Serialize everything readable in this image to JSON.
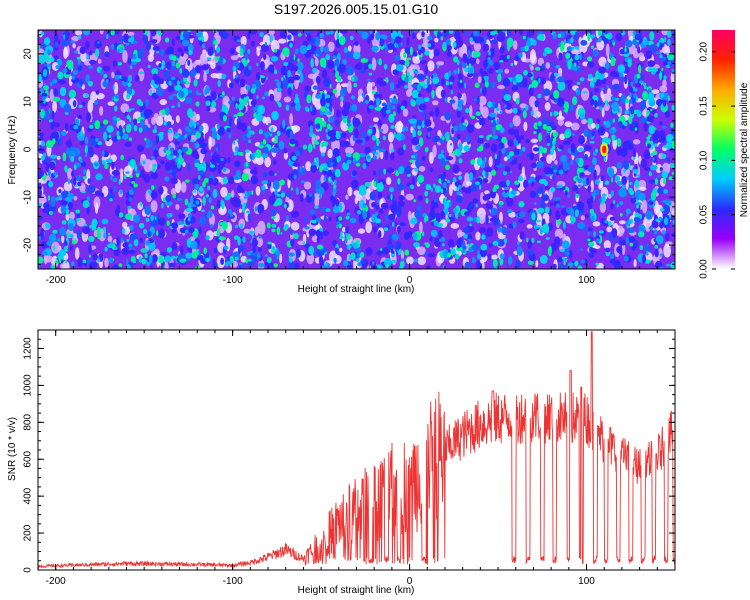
{
  "title": "S197.2026.005.15.01.G10",
  "chart_data": [
    {
      "type": "heatmap",
      "xlabel": "Height of straight line (km)",
      "ylabel": "Frequency (Hz)",
      "xlim": [
        -210,
        150
      ],
      "ylim": [
        -25,
        25
      ],
      "xticks": [
        "-200",
        "-100",
        "0",
        "100"
      ],
      "yticks": [
        "-20",
        "-10",
        "0",
        "10",
        "20"
      ],
      "colorbar": {
        "label": "Normalized spectral amplitude",
        "range": [
          0,
          0.22
        ],
        "ticks": [
          "0.00",
          "0.05",
          "0.10",
          "0.15",
          "0.20"
        ],
        "colors": [
          "#ffffff",
          "#9900ff",
          "#2a2aff",
          "#00ccff",
          "#00ff66",
          "#ccff00",
          "#ffaa00",
          "#ff2200",
          "#ff0066"
        ]
      },
      "hotspots": [
        {
          "x": 110,
          "y": 0,
          "value": 0.2
        },
        {
          "x": 70,
          "y": -14,
          "value": 0.09
        },
        {
          "x": 145,
          "y": -15,
          "value": 0.08
        },
        {
          "x": -206,
          "y": 16,
          "value": 0.08
        }
      ]
    },
    {
      "type": "line",
      "xlabel": "Height of straight line (km)",
      "ylabel": "SNR (10 * v/v)",
      "xlim": [
        -210,
        150
      ],
      "ylim": [
        0,
        1300
      ],
      "xticks": [
        "-200",
        "-100",
        "0",
        "100"
      ],
      "yticks": [
        "0",
        "200",
        "400",
        "600",
        "800",
        "1000",
        "1200"
      ],
      "color": "#ee3333",
      "baseline": {
        "x": [
          -210,
          -160,
          -120,
          -100,
          -90,
          -80,
          -70,
          -60,
          -50,
          -40,
          -30,
          -20,
          -10,
          0,
          10,
          20,
          30,
          40,
          50,
          60,
          70,
          80,
          90,
          100,
          110,
          120,
          130,
          140,
          150
        ],
        "y": [
          20,
          35,
          30,
          25,
          40,
          70,
          110,
          60,
          150,
          260,
          320,
          380,
          430,
          470,
          560,
          650,
          730,
          790,
          820,
          830,
          840,
          830,
          820,
          820,
          700,
          620,
          560,
          620,
          760
        ]
      },
      "dropouts_x": [
        -22,
        -13,
        -6,
        8,
        59,
        67,
        75,
        82,
        90,
        97,
        105,
        111,
        118,
        125,
        132,
        138,
        145,
        150
      ],
      "peaks": [
        {
          "x": 47,
          "y": 970
        },
        {
          "x": 91,
          "y": 1080
        },
        {
          "x": 97,
          "y": 990
        },
        {
          "x": 103,
          "y": 1290
        }
      ]
    }
  ]
}
